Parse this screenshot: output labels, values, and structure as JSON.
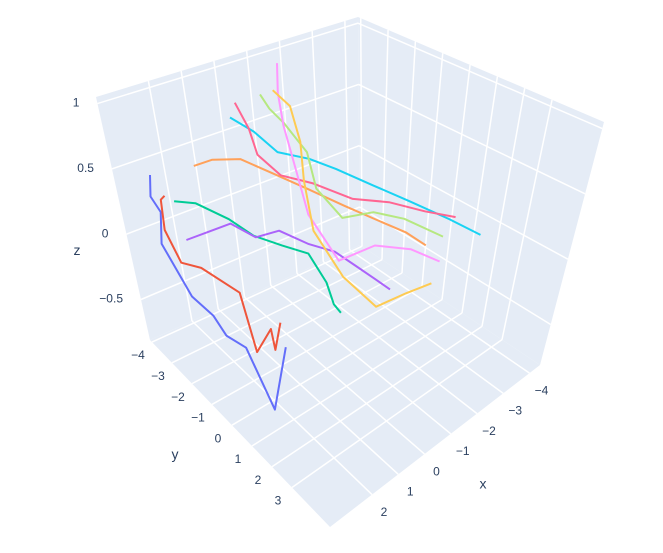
{
  "chart_data": {
    "type": "line3d",
    "xaxis_title": "x",
    "yaxis_title": "y",
    "zaxis_title": "z",
    "xlim": [
      -4.4,
      3.6
    ],
    "ylim": [
      -4.1,
      4.9
    ],
    "zlim": [
      -0.81,
      1.05
    ],
    "xticks": [
      {
        "value": -4,
        "label": "−4"
      },
      {
        "value": -3,
        "label": "−3"
      },
      {
        "value": -2,
        "label": "−2"
      },
      {
        "value": -1,
        "label": "−1"
      },
      0,
      1,
      2
    ],
    "yticks": [
      {
        "value": -4,
        "label": "−4"
      },
      {
        "value": -3,
        "label": "−3"
      },
      {
        "value": -2,
        "label": "−2"
      },
      {
        "value": -1,
        "label": "−1"
      },
      0,
      1,
      2,
      3
    ],
    "zticks": [
      {
        "value": -0.5,
        "label": "−0.5"
      },
      0,
      0.5,
      1
    ],
    "grid": true,
    "series": [
      {
        "color": "#636efa",
        "x": [
          2.8,
          3.1,
          3.0,
          3.4,
          3.2,
          2.9,
          2.8,
          2.5,
          2.4,
          1.6
        ],
        "y": [
          -3.6,
          -3.3,
          -3.1,
          -2.7,
          -1.9,
          -1.4,
          -1.0,
          -0.5,
          0.6,
          0.2
        ],
        "z": [
          0.45,
          0.35,
          0.25,
          0.1,
          -0.2,
          -0.3,
          -0.4,
          -0.45,
          -0.75,
          -0.45
        ]
      },
      {
        "color": "#EF553B",
        "x": [
          2.6,
          2.8,
          3.1,
          3.0,
          2.7,
          2.2,
          2.2,
          1.8,
          1.9,
          1.6
        ],
        "y": [
          -3.4,
          -3.3,
          -2.9,
          -2.5,
          -2.0,
          -1.0,
          -0.4,
          -0.2,
          0.1,
          0.0
        ],
        "z": [
          0.3,
          0.3,
          0.15,
          -0.05,
          -0.05,
          -0.15,
          -0.5,
          -0.35,
          -0.45,
          -0.3
        ]
      },
      {
        "color": "#00cc96",
        "x": [
          2.2,
          1.8,
          1.2,
          0.8,
          0.3,
          -0.2,
          -0.5,
          -0.6,
          -0.7
        ],
        "y": [
          -3.6,
          -3.2,
          -2.6,
          -2.1,
          -1.5,
          -1.0,
          -0.6,
          -0.4,
          -0.2
        ],
        "z": [
          0.2,
          0.2,
          0.1,
          0.0,
          -0.05,
          -0.1,
          -0.3,
          -0.45,
          -0.5
        ]
      },
      {
        "color": "#ab63fa",
        "x": [
          2.4,
          1.8,
          1.3,
          0.8,
          0.3,
          -0.3,
          -0.8,
          -1.2,
          -1.6,
          -2.0
        ],
        "y": [
          -3.0,
          -2.7,
          -2.4,
          -2.0,
          -1.6,
          -1.1,
          -0.6,
          -0.2,
          0.2,
          0.4
        ],
        "z": [
          0.0,
          0.05,
          0.1,
          0.0,
          0.05,
          -0.05,
          -0.1,
          -0.2,
          -0.3,
          -0.4
        ]
      },
      {
        "color": "#FFA15A",
        "x": [
          1.2,
          0.8,
          0.2,
          -0.4,
          -1.0,
          -1.6,
          -2.2,
          -2.8,
          -3.2
        ],
        "y": [
          -3.9,
          -3.6,
          -3.2,
          -2.6,
          -2.0,
          -1.2,
          -0.6,
          0.0,
          0.4
        ],
        "z": [
          0.35,
          0.4,
          0.4,
          0.3,
          0.2,
          0.1,
          0.0,
          -0.1,
          -0.2
        ]
      },
      {
        "color": "#19d3f3",
        "x": [
          -0.2,
          -0.6,
          -1.0,
          -1.4,
          -1.8,
          -2.4,
          -3.0,
          -3.6,
          -4.1
        ],
        "y": [
          -4.0,
          -3.6,
          -3.2,
          -2.4,
          -1.8,
          -1.0,
          -0.2,
          0.8,
          1.6
        ],
        "z": [
          0.6,
          0.5,
          0.35,
          0.35,
          0.3,
          0.2,
          0.1,
          0.0,
          -0.1
        ]
      },
      {
        "color": "#FF6692",
        "x": [
          -0.4,
          -0.6,
          -0.5,
          -0.9,
          -1.5,
          -2.2,
          -2.8,
          -3.4,
          -4.0
        ],
        "y": [
          -4.0,
          -3.8,
          -3.4,
          -3.0,
          -2.4,
          -1.6,
          -0.8,
          0.0,
          0.6
        ],
        "z": [
          0.7,
          0.5,
          0.35,
          0.2,
          0.15,
          0.05,
          0.05,
          0.0,
          -0.05
        ]
      },
      {
        "color": "#B6E880",
        "x": [
          -1.2,
          -1.3,
          -1.5,
          -1.8,
          -1.6,
          -2.0,
          -2.6,
          -3.2,
          -3.8
        ],
        "y": [
          -4.0,
          -3.8,
          -3.5,
          -3.0,
          -2.4,
          -1.8,
          -1.2,
          -0.6,
          0.4
        ],
        "z": [
          0.7,
          0.6,
          0.5,
          0.3,
          0.1,
          -0.1,
          -0.05,
          -0.1,
          -0.2
        ]
      },
      {
        "color": "#FF97FF",
        "x": [
          -1.8,
          -1.6,
          -1.4,
          -1.2,
          -1.0,
          -1.4,
          -2.2,
          -3.0,
          -3.6
        ],
        "y": [
          -4.0,
          -3.8,
          -3.4,
          -2.8,
          -2.0,
          -1.2,
          -0.6,
          0.0,
          0.6
        ],
        "z": [
          0.9,
          0.7,
          0.5,
          0.3,
          0.0,
          -0.3,
          -0.2,
          -0.25,
          -0.35
        ]
      },
      {
        "color": "#FECB52",
        "x": [
          -1.6,
          -1.8,
          -1.6,
          -1.2,
          -1.0,
          -1.4,
          -2.0,
          -2.6,
          -3.2
        ],
        "y": [
          -4.0,
          -3.6,
          -3.0,
          -2.4,
          -1.8,
          -1.0,
          -0.2,
          0.4,
          0.8
        ],
        "z": [
          0.7,
          0.6,
          0.4,
          0.2,
          -0.1,
          -0.4,
          -0.6,
          -0.5,
          -0.45
        ]
      }
    ]
  }
}
